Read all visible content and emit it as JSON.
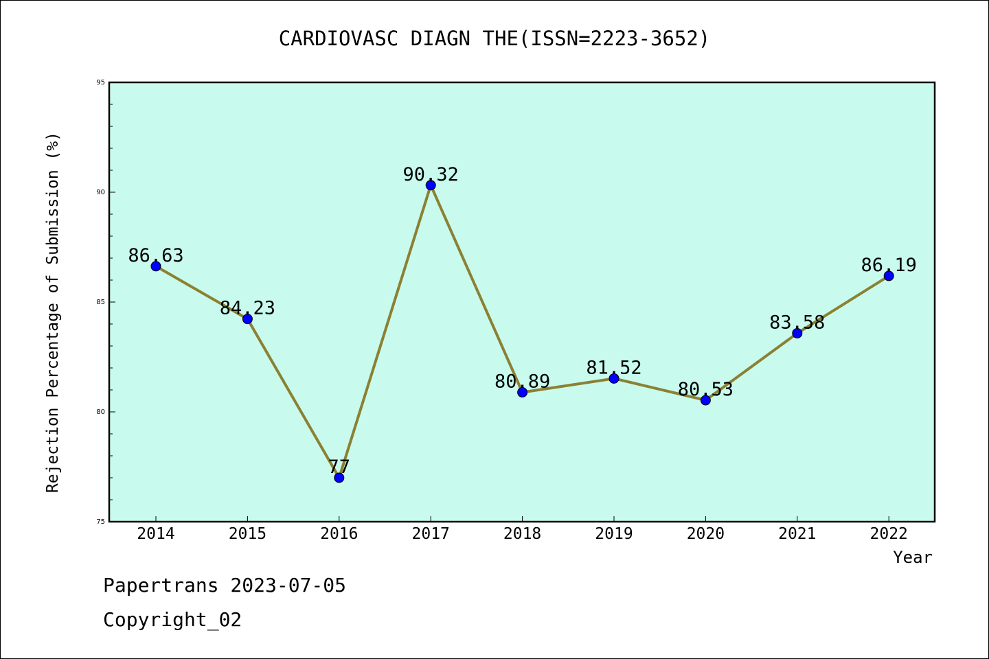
{
  "chart_data": {
    "type": "line",
    "title": "CARDIOVASC DIAGN THE(ISSN=2223-3652)",
    "xlabel": "Year",
    "ylabel": "Rejection Percentage of Submission (%)",
    "categories": [
      "2014",
      "2015",
      "2016",
      "2017",
      "2018",
      "2019",
      "2020",
      "2021",
      "2022"
    ],
    "series": [
      {
        "values": [
          86.63,
          84.23,
          77,
          90.32,
          80.89,
          81.52,
          80.53,
          83.58,
          86.19
        ],
        "labels": [
          "86.63",
          "84.23",
          "77",
          "90.32",
          "80.89",
          "81.52",
          "80.53",
          "83.58",
          "86.19"
        ]
      }
    ],
    "ylim": [
      75,
      95
    ],
    "yticks": [
      "75",
      "80",
      "85",
      "90",
      "95"
    ],
    "grid": false,
    "colors": {
      "plot_background": "#c8fbee",
      "line": "#8b8132",
      "marker": "#0000ff"
    }
  },
  "footer": {
    "line1": "Papertrans 2023-07-05",
    "line2": "Copyright_02"
  }
}
